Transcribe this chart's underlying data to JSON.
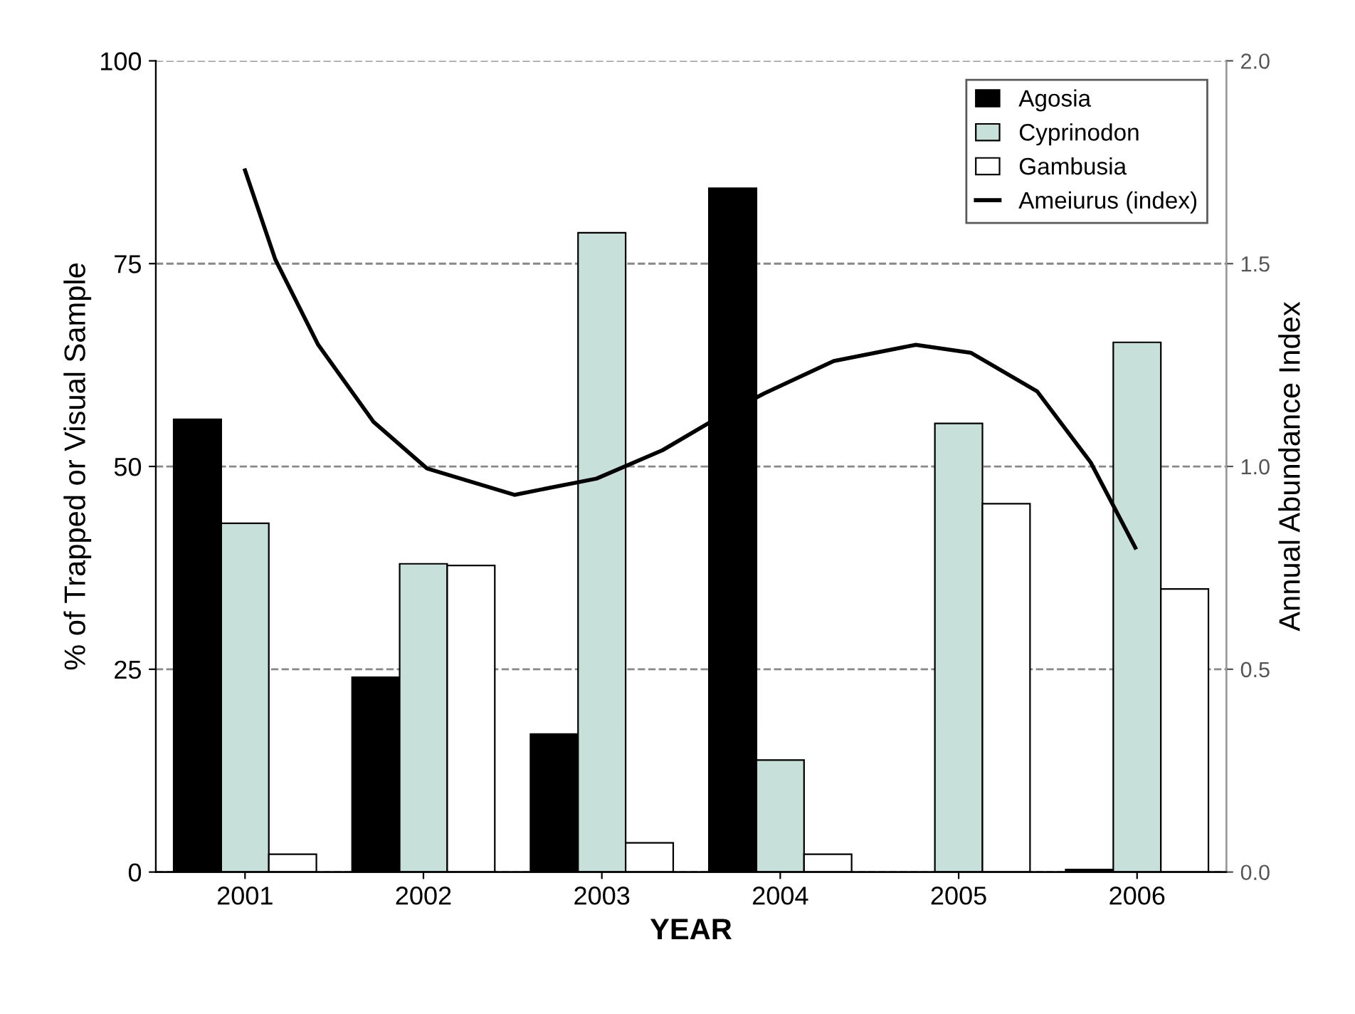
{
  "chart_data": {
    "type": "bar",
    "xlabel": "YEAR",
    "ylabel": "% of Trapped or Visual Sample",
    "y2label": "Annual Abundance Index",
    "x": [
      2001,
      2002,
      2003,
      2004,
      2005,
      2006
    ],
    "xlim": [
      2000.5,
      2006.5
    ],
    "xticks": [
      2001,
      2002,
      2003,
      2004,
      2005,
      2006
    ],
    "ylim": [
      0,
      100
    ],
    "yticks": [
      0,
      25,
      50,
      75,
      100
    ],
    "y2lim": [
      0,
      2
    ],
    "y2ticks": [
      {
        "value": 0,
        "label": "0.0"
      },
      {
        "value": 0.5,
        "label": "0.5"
      },
      {
        "value": 1,
        "label": "1.0"
      },
      {
        "value": 1.5,
        "label": "1.5"
      },
      {
        "value": 2,
        "label": "2.0"
      }
    ],
    "grid": "y",
    "legend": "top right",
    "line_style": "dashed",
    "series": [
      {
        "name": "Agosia",
        "color": "#000000",
        "values": [
          55.8,
          24,
          17,
          84.3,
          null,
          0.3
        ]
      },
      {
        "name": "Cyprinodon",
        "color": "#c8e0da",
        "values": [
          43,
          38,
          78.8,
          13.8,
          55.3,
          65.3
        ]
      },
      {
        "name": "Gambusia",
        "color": "#ffffff",
        "values": [
          2.2,
          37.8,
          3.6,
          2.2,
          45.4,
          34.9
        ]
      },
      {
        "name": "Ameiurus (index)",
        "type": "line",
        "axis": "y2",
        "color": "#000000",
        "line_style": "solid",
        "marker": "none",
        "x": [
          2001.0,
          2001.17,
          2001.41,
          2001.72,
          2002.02,
          2002.51,
          2002.97,
          2003.34,
          2003.65,
          2003.91,
          2004.3,
          2004.76,
          2005.07,
          2005.44,
          2005.74,
          2005.99
        ],
        "values": [
          1.73,
          1.51,
          1.3,
          1.11,
          0.995,
          0.93,
          0.97,
          1.04,
          1.12,
          1.18,
          1.26,
          1.3,
          1.28,
          1.185,
          1.01,
          0.8
        ]
      }
    ]
  }
}
